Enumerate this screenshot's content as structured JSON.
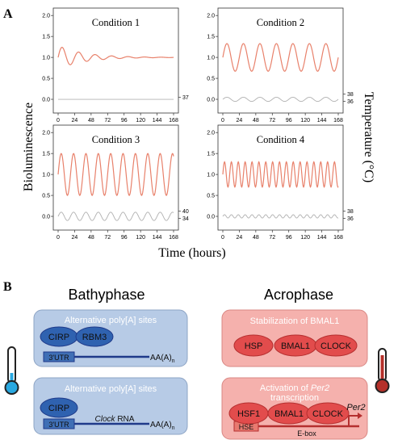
{
  "panel_a": {
    "label": "A",
    "ylabel_left": "Bioluminescence",
    "ylabel_right": "Temperature (°C)",
    "xlabel": "Time (hours)",
    "x_ticks": [
      "0",
      "24",
      "48",
      "72",
      "96",
      "120",
      "144",
      "168"
    ],
    "y_ticks": [
      "0.0",
      "0.5",
      "1.0",
      "1.5",
      "2.0"
    ],
    "colors": {
      "biolum": "#e8816b",
      "temp": "#b0b0b0"
    }
  },
  "chart_data": [
    {
      "type": "line",
      "title": "Condition 1",
      "xlim": [
        0,
        168
      ],
      "ylim": [
        -0.25,
        2.1
      ],
      "series": [
        {
          "role": "bioluminescence",
          "baseline": 1.0,
          "amp": 0.28,
          "period": 24,
          "decay": 38
        },
        {
          "role": "temperature",
          "baseline": 0.0,
          "amp": 0.0,
          "period": 24
        }
      ],
      "temp_labels": [
        "37"
      ]
    },
    {
      "type": "line",
      "title": "Condition 2",
      "xlim": [
        0,
        168
      ],
      "ylim": [
        -0.25,
        2.1
      ],
      "series": [
        {
          "role": "bioluminescence",
          "baseline": 1.0,
          "amp": 0.33,
          "period": 24
        },
        {
          "role": "temperature",
          "baseline": 0.0,
          "amp": 0.05,
          "period": 24
        }
      ],
      "temp_labels": [
        "38",
        "36"
      ]
    },
    {
      "type": "line",
      "title": "Condition 3",
      "xlim": [
        0,
        168
      ],
      "ylim": [
        -0.25,
        2.1
      ],
      "series": [
        {
          "role": "bioluminescence",
          "baseline": 1.0,
          "amp": 0.5,
          "period": 18
        },
        {
          "role": "temperature",
          "baseline": 0.0,
          "amp": 0.1,
          "period": 18
        }
      ],
      "temp_labels": [
        "40",
        "34"
      ]
    },
    {
      "type": "line",
      "title": "Condition 4",
      "xlim": [
        0,
        168
      ],
      "ylim": [
        -0.25,
        2.1
      ],
      "series": [
        {
          "role": "bioluminescence",
          "baseline": 1.0,
          "amp": 0.3,
          "period": 10
        },
        {
          "role": "temperature",
          "baseline": 0.0,
          "amp": 0.04,
          "period": 10
        }
      ],
      "temp_labels": [
        "38",
        "36"
      ]
    }
  ],
  "panel_b": {
    "label": "B",
    "bathyphase": {
      "title": "Bathyphase",
      "box1": {
        "heading": "Alternative poly[A] sites",
        "protein1": "CIRP",
        "protein2": "RBM3",
        "utr": "3'UTR",
        "tail": "AA(A)",
        "tail_sub": "n"
      },
      "box2": {
        "heading": "Alternative poly[A] sites",
        "protein1": "CIRP",
        "utr": "3'UTR",
        "rna": "Clock",
        "rna_suffix": " RNA",
        "tail": "AA(A)",
        "tail_sub": "n"
      }
    },
    "acrophase": {
      "title": "Acrophase",
      "box1": {
        "heading": "Stabilization of BMAL1",
        "protein1": "HSP",
        "protein2": "BMAL1",
        "protein3": "CLOCK"
      },
      "box2": {
        "heading_pre": "Activation of ",
        "heading_gene": "Per2",
        "heading_line2": "transcription",
        "protein1": "HSF1",
        "protein2": "BMAL1",
        "protein3": "CLOCK",
        "gene": "Per2",
        "hse": "HSE",
        "ebox": "E-box"
      }
    }
  }
}
